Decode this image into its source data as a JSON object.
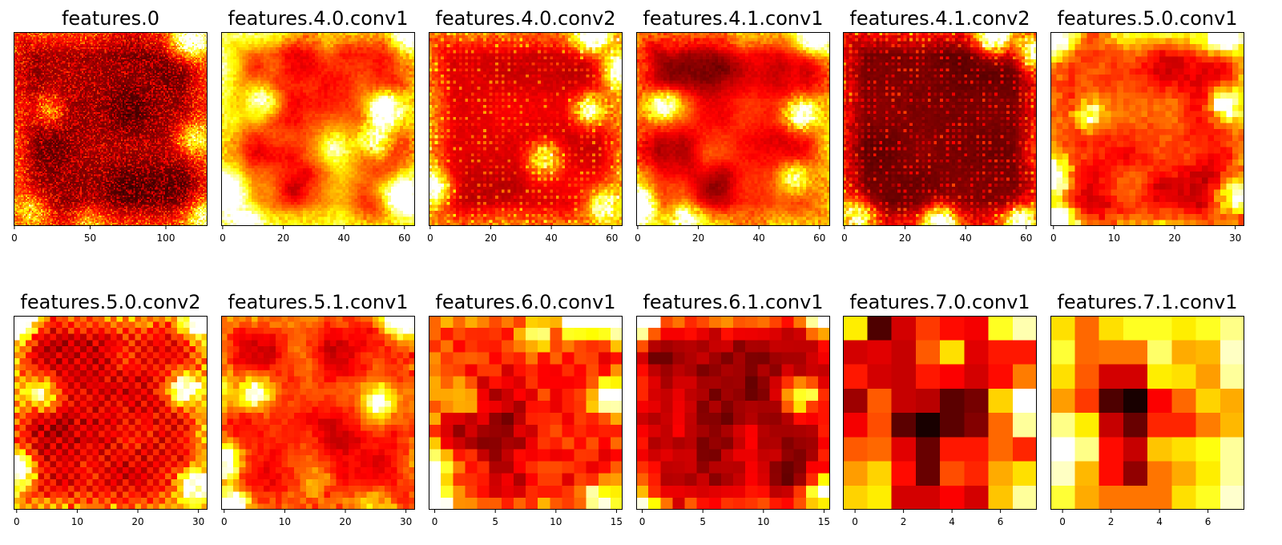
{
  "chart_data": [
    {
      "type": "heatmap",
      "title": "features.0",
      "grid": 128,
      "x_ticks": [
        0,
        50,
        100
      ],
      "pattern": "dark-noise",
      "hotspots": [
        [
          0.95,
          0.03,
          0.6
        ],
        [
          0.88,
          0.06,
          0.5
        ],
        [
          0.92,
          0.55,
          0.5
        ],
        [
          0.18,
          0.4,
          0.4
        ],
        [
          0.1,
          0.92,
          0.45
        ],
        [
          0.97,
          0.95,
          0.5
        ],
        [
          0.4,
          0.97,
          0.3
        ]
      ]
    },
    {
      "type": "heatmap",
      "title": "features.4.0.conv1",
      "grid": 64,
      "x_ticks": [
        0,
        20,
        40,
        60
      ],
      "pattern": "smooth",
      "hotspots": [
        [
          0.98,
          0.02,
          0.8
        ],
        [
          0.85,
          0.4,
          0.95
        ],
        [
          0.8,
          0.55,
          0.7
        ],
        [
          0.03,
          0.83,
          0.85
        ],
        [
          0.93,
          0.85,
          0.8
        ],
        [
          0.12,
          0.97,
          0.5
        ],
        [
          0.2,
          0.35,
          0.4
        ],
        [
          0.6,
          0.6,
          0.4
        ]
      ]
    },
    {
      "type": "heatmap",
      "title": "features.4.0.conv2",
      "grid": 64,
      "x_ticks": [
        0,
        20,
        40,
        60
      ],
      "pattern": "grid-noise",
      "hotspots": [
        [
          0.85,
          0.02,
          0.8
        ],
        [
          0.98,
          0.2,
          0.6
        ],
        [
          0.83,
          0.4,
          0.7
        ],
        [
          0.03,
          0.8,
          0.6
        ],
        [
          0.9,
          0.9,
          0.6
        ],
        [
          0.6,
          0.65,
          0.6
        ]
      ]
    },
    {
      "type": "heatmap",
      "title": "features.4.1.conv1",
      "grid": 64,
      "x_ticks": [
        0,
        20,
        40,
        60
      ],
      "pattern": "smooth-dark",
      "hotspots": [
        [
          0.93,
          0.02,
          0.95
        ],
        [
          0.02,
          0.9,
          0.9
        ],
        [
          0.25,
          0.97,
          0.7
        ],
        [
          0.85,
          0.42,
          0.9
        ],
        [
          0.14,
          0.38,
          0.6
        ],
        [
          0.82,
          0.75,
          0.5
        ]
      ]
    },
    {
      "type": "heatmap",
      "title": "features.4.1.conv2",
      "grid": 64,
      "x_ticks": [
        0,
        20,
        40,
        60
      ],
      "pattern": "grid-noise-dark",
      "hotspots": [
        [
          0.78,
          0.02,
          1.0
        ],
        [
          0.5,
          0.98,
          0.85
        ],
        [
          0.98,
          0.1,
          0.7
        ],
        [
          0.08,
          0.95,
          0.7
        ],
        [
          0.92,
          0.98,
          0.8
        ]
      ]
    },
    {
      "type": "heatmap",
      "title": "features.5.0.conv1",
      "grid": 32,
      "x_ticks": [
        0,
        10,
        20,
        30
      ],
      "pattern": "blocky",
      "hotspots": [
        [
          0.9,
          0.03,
          0.95
        ],
        [
          0.03,
          0.03,
          0.7
        ],
        [
          0.03,
          0.75,
          0.8
        ],
        [
          0.9,
          0.38,
          0.8
        ],
        [
          0.93,
          0.85,
          0.6
        ],
        [
          0.2,
          0.42,
          0.6
        ],
        [
          0.05,
          0.98,
          0.8
        ]
      ]
    },
    {
      "type": "heatmap",
      "title": "features.5.0.conv2",
      "grid": 32,
      "x_ticks": [
        0,
        10,
        20,
        30
      ],
      "pattern": "checker",
      "hotspots": [
        [
          0.03,
          0.03,
          0.9
        ],
        [
          0.95,
          0.03,
          0.9
        ],
        [
          0.03,
          0.8,
          0.8
        ],
        [
          0.88,
          0.38,
          0.8
        ],
        [
          0.93,
          0.88,
          0.8
        ],
        [
          0.15,
          0.4,
          0.6
        ]
      ]
    },
    {
      "type": "heatmap",
      "title": "features.5.1.conv1",
      "grid": 32,
      "x_ticks": [
        0,
        10,
        20,
        30
      ],
      "pattern": "blocky",
      "hotspots": [
        [
          0.93,
          0.02,
          0.95
        ],
        [
          0.03,
          0.75,
          0.8
        ],
        [
          0.05,
          0.97,
          0.8
        ],
        [
          0.18,
          0.4,
          0.6
        ],
        [
          0.82,
          0.45,
          0.75
        ],
        [
          0.5,
          0.85,
          0.3
        ]
      ]
    },
    {
      "type": "heatmap",
      "title": "features.6.0.conv1",
      "grid": 16,
      "x_ticks": [
        0,
        5,
        10,
        15
      ],
      "pattern": "coarse",
      "hotspots": [
        [
          0.97,
          0.03,
          1.0
        ],
        [
          0.78,
          0.03,
          0.8
        ],
        [
          0.03,
          0.97,
          0.95
        ],
        [
          0.03,
          0.8,
          0.7
        ],
        [
          0.93,
          0.42,
          0.8
        ],
        [
          0.88,
          0.95,
          0.7
        ],
        [
          0.18,
          0.42,
          0.6
        ],
        [
          0.55,
          0.1,
          0.45
        ]
      ]
    },
    {
      "type": "heatmap",
      "title": "features.6.1.conv1",
      "grid": 16,
      "x_ticks": [
        0,
        5,
        10,
        15
      ],
      "pattern": "coarse-dark",
      "hotspots": [
        [
          0.03,
          0.03,
          1.0
        ],
        [
          0.95,
          0.03,
          0.8
        ],
        [
          0.85,
          0.42,
          0.8
        ],
        [
          0.97,
          0.9,
          0.75
        ],
        [
          0.03,
          0.97,
          0.55
        ]
      ]
    },
    {
      "type": "heatmap",
      "title": "features.7.0.conv1",
      "grid": 8,
      "x_ticks": [
        0,
        2,
        4,
        6
      ],
      "values": [
        [
          0.72,
          0.1,
          0.3,
          0.45,
          0.38,
          0.35,
          0.78,
          0.92
        ],
        [
          0.3,
          0.32,
          0.28,
          0.5,
          0.7,
          0.32,
          0.4,
          0.4
        ],
        [
          0.4,
          0.3,
          0.28,
          0.4,
          0.36,
          0.3,
          0.38,
          0.55
        ],
        [
          0.22,
          0.5,
          0.28,
          0.26,
          0.12,
          0.16,
          0.68,
          1.0
        ],
        [
          0.35,
          0.48,
          0.12,
          0.02,
          0.12,
          0.18,
          0.52,
          0.9
        ],
        [
          0.5,
          0.52,
          0.32,
          0.14,
          0.4,
          0.4,
          0.52,
          0.42
        ],
        [
          0.6,
          0.68,
          0.38,
          0.14,
          0.48,
          0.42,
          0.62,
          0.7
        ],
        [
          0.68,
          0.72,
          0.3,
          0.3,
          0.36,
          0.3,
          0.66,
          0.9
        ]
      ]
    },
    {
      "type": "heatmap",
      "title": "features.7.1.conv1",
      "grid": 8,
      "x_ticks": [
        0,
        2,
        4,
        6
      ],
      "values": [
        [
          0.7,
          0.52,
          0.7,
          0.78,
          0.78,
          0.72,
          0.78,
          0.88
        ],
        [
          0.8,
          0.52,
          0.54,
          0.54,
          0.85,
          0.62,
          0.64,
          0.94
        ],
        [
          0.7,
          0.5,
          0.3,
          0.3,
          0.72,
          0.7,
          0.6,
          0.9
        ],
        [
          0.6,
          0.45,
          0.1,
          0.02,
          0.36,
          0.52,
          0.68,
          0.62
        ],
        [
          0.88,
          0.72,
          0.28,
          0.14,
          0.42,
          0.42,
          0.55,
          0.64
        ],
        [
          1.0,
          0.88,
          0.38,
          0.28,
          0.66,
          0.7,
          0.76,
          0.9
        ],
        [
          0.94,
          0.64,
          0.38,
          0.2,
          0.54,
          0.62,
          0.72,
          0.9
        ],
        [
          0.8,
          0.62,
          0.54,
          0.54,
          0.54,
          0.7,
          0.78,
          0.95
        ]
      ]
    }
  ]
}
